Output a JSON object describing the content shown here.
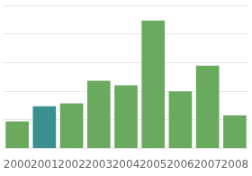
{
  "chart_data": {
    "type": "bar",
    "categories": [
      "2000",
      "2001",
      "2002",
      "2003",
      "2004",
      "2005",
      "2006",
      "2007",
      "2008"
    ],
    "values": [
      18,
      28,
      30,
      45,
      42,
      85,
      38,
      55,
      22
    ],
    "colors": [
      "#6aaa5e",
      "#3a8f8f",
      "#6aaa5e",
      "#6aaa5e",
      "#6aaa5e",
      "#6aaa5e",
      "#6aaa5e",
      "#6aaa5e",
      "#6aaa5e"
    ],
    "ylim": [
      0,
      95
    ],
    "yticks": [
      0,
      19,
      38,
      57,
      76,
      95
    ],
    "grid": true,
    "tick_labels": "x"
  }
}
